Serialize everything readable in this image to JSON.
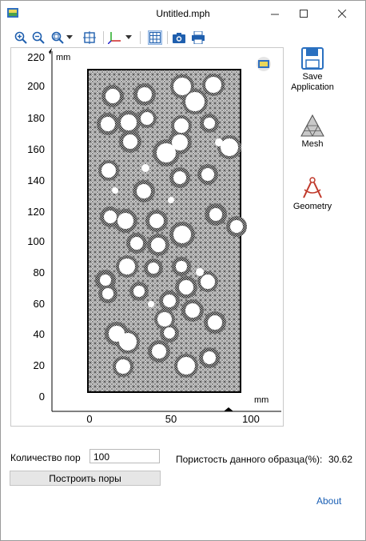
{
  "window": {
    "title": "Untitled.mph"
  },
  "toolbar": {
    "buttons": [
      "zoom-in-icon",
      "zoom-out-icon",
      "zoom-box-icon",
      "zoom-extents-icon",
      "axis-orientation-icon",
      "grid-icon",
      "screenshot-icon",
      "print-icon"
    ]
  },
  "plot": {
    "unit_y": "mm",
    "unit_x": "mm",
    "yticks": [
      "220",
      "200",
      "180",
      "160",
      "140",
      "120",
      "100",
      "80",
      "60",
      "40",
      "20",
      "0"
    ],
    "xticks": [
      "0",
      "50",
      "100"
    ]
  },
  "sidebar": {
    "save": "Save Application",
    "mesh": "Mesh",
    "geometry": "Geometry"
  },
  "form": {
    "count_label": "Количество пор",
    "count_value": "100",
    "build_label": "Построить поры",
    "porosity_label": "Пористость данного образца(%):",
    "porosity_value": "30.62",
    "about": "About"
  },
  "colors": {
    "accent": "#1a5fb4",
    "mesh_fill": "#d3d3d3"
  }
}
